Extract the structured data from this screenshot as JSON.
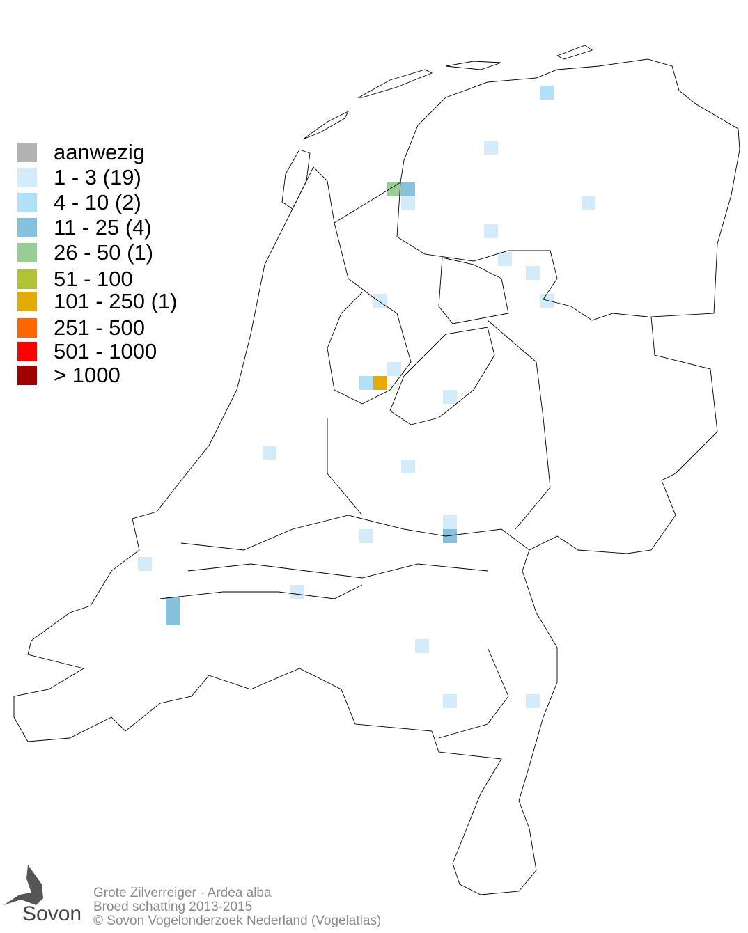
{
  "legend": {
    "items": [
      {
        "label": "aanwezig",
        "color": "#b3b3b3"
      },
      {
        "label": "1 - 3 (19)",
        "color": "#d4ecf9"
      },
      {
        "label": "4 - 10 (2)",
        "color": "#b1e1f8"
      },
      {
        "label": "11 - 25 (4)",
        "color": "#86c1de"
      },
      {
        "label": "26 - 50 (1)",
        "color": "#98cd96"
      },
      {
        "label": "51 - 100",
        "color": "#b0c235"
      },
      {
        "label": "101 - 250 (1)",
        "color": "#e2ab05"
      },
      {
        "label": "251 - 500",
        "color": "#ff6600"
      },
      {
        "label": "501 - 1000",
        "color": "#ff0000"
      },
      {
        "label": "> 1000",
        "color": "#a00000"
      }
    ]
  },
  "footer": {
    "species": "Grote Zilverreiger - Ardea alba",
    "subtitle": "Broed schatting 2013-2015",
    "copyright": "© Sovon Vogelonderzoek Nederland (Vogelatlas)"
  },
  "logo": {
    "text": "Sovon"
  }
}
